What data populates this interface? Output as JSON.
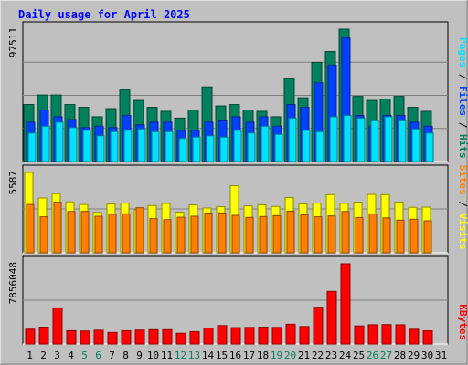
{
  "chart_data": {
    "type": "bar",
    "title": "Daily usage for April 2025",
    "colors": {
      "background": "#c0c0c0",
      "panel": "#c0c0c0",
      "title": "#0000ff",
      "hits": "#00805c",
      "files": "#0040ff",
      "pages": "#00e0ff",
      "visits": "#ffff00",
      "sites": "#ff8000",
      "kbytes": "#ff0000",
      "weekend": "#00805c",
      "weekday": "#000000"
    },
    "categories": [
      "1",
      "2",
      "3",
      "4",
      "5",
      "6",
      "7",
      "8",
      "9",
      "10",
      "11",
      "12",
      "13",
      "14",
      "15",
      "16",
      "17",
      "18",
      "19",
      "20",
      "21",
      "22",
      "23",
      "24",
      "25",
      "26",
      "27",
      "28",
      "29",
      "30",
      "31"
    ],
    "weekend_days": [
      5,
      6,
      12,
      13,
      19,
      20,
      26,
      27
    ],
    "panels": [
      {
        "name": "hits-files-pages",
        "ymax_label": "97511",
        "ymax": 97511,
        "legend": [
          "Pages",
          "Files",
          "Hits"
        ],
        "series": [
          {
            "name": "Hits",
            "key": "hits",
            "values": [
              42000,
              49000,
              49000,
              42000,
              40000,
              33000,
              39000,
              53000,
              45000,
              40000,
              37000,
              32000,
              38000,
              55000,
              41000,
              42000,
              38000,
              37000,
              33000,
              61000,
              47000,
              73000,
              81000,
              97511,
              48000,
              45000,
              46000,
              48000,
              40000,
              37000,
              0
            ]
          },
          {
            "name": "Files",
            "key": "files",
            "values": [
              29000,
              38000,
              33000,
              31000,
              25000,
              26000,
              25000,
              34000,
              27000,
              29000,
              29000,
              23000,
              23000,
              29000,
              30000,
              33000,
              29000,
              33000,
              26000,
              42000,
              40000,
              58000,
              71000,
              91000,
              34000,
              26000,
              34000,
              34000,
              29000,
              26000,
              0
            ]
          },
          {
            "name": "Pages",
            "key": "pages",
            "values": [
              21000,
              26000,
              29000,
              25000,
              23000,
              19000,
              22000,
              23000,
              24000,
              22000,
              22000,
              17000,
              18000,
              19000,
              18000,
              23000,
              21000,
              26000,
              20000,
              32000,
              23000,
              22000,
              33000,
              34000,
              32000,
              30000,
              33000,
              30000,
              24000,
              21000,
              0
            ]
          }
        ]
      },
      {
        "name": "visits-sites",
        "ymax_label": "5587",
        "ymax": 5587,
        "legend": [
          "Sites",
          "Visits"
        ],
        "series": [
          {
            "name": "Visits",
            "key": "visits",
            "values": [
              5587,
              3810,
              4110,
              3540,
              3360,
              2810,
              3390,
              3450,
              3000,
              3290,
              3430,
              2820,
              3330,
              3110,
              3200,
              4660,
              3260,
              3340,
              3220,
              3840,
              3400,
              3450,
              4040,
              3440,
              3520,
              4060,
              4050,
              3530,
              3160,
              3170,
              0
            ]
          },
          {
            "name": "Sites",
            "key": "sites",
            "values": [
              3360,
              2500,
              3520,
              2870,
              2880,
              2540,
              2680,
              2710,
              3130,
              2370,
              2300,
              2470,
              2540,
              2760,
              2770,
              2600,
              2460,
              2520,
              2580,
              2890,
              2640,
              2500,
              2560,
              2870,
              2450,
              2690,
              2420,
              2270,
              2330,
              2220,
              0
            ]
          }
        ]
      },
      {
        "name": "kbytes",
        "ymax_label": "7856048",
        "ymax": 7856048,
        "legend": [
          "KBytes"
        ],
        "series": [
          {
            "name": "KBytes",
            "key": "kbytes",
            "values": [
              1450000,
              1650000,
              3530000,
              1300000,
              1270000,
              1350000,
              1130000,
              1300000,
              1360000,
              1400000,
              1400000,
              1050000,
              1210000,
              1560000,
              1800000,
              1600000,
              1620000,
              1650000,
              1620000,
              1930000,
              1710000,
              3600000,
              5150000,
              7856048,
              1770000,
              1880000,
              1900000,
              1880000,
              1440000,
              1290000,
              0
            ]
          }
        ]
      }
    ]
  }
}
